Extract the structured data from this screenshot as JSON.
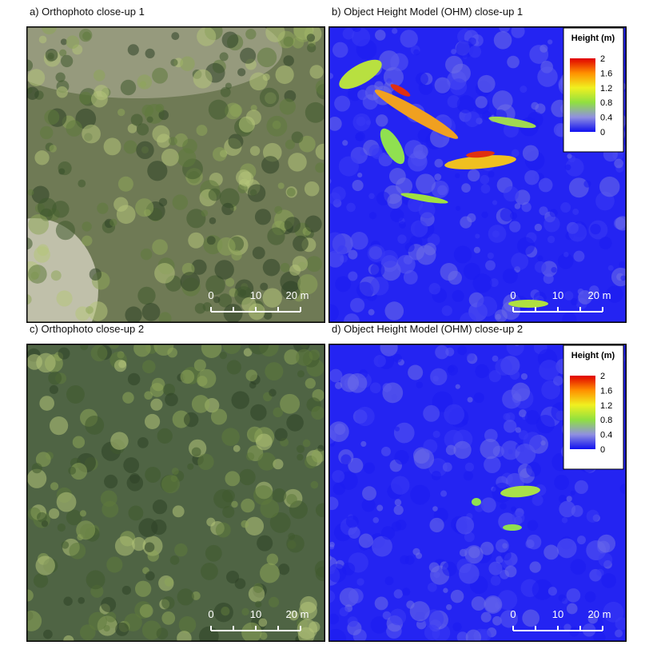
{
  "panels": [
    {
      "title": "a) Orthophoto close-up 1",
      "scale_bar": [
        "0",
        "10",
        "20 m"
      ]
    },
    {
      "title": "b) Object Height Model (OHM) close-up 1",
      "scale_bar": [
        "0",
        "10",
        "20 m"
      ],
      "legend": {
        "title": "Height (m)",
        "ticks": [
          "2",
          "1.6",
          "1.2",
          "0.8",
          "0.4",
          "0"
        ]
      }
    },
    {
      "title": "c) Orthophoto close-up 2",
      "scale_bar": [
        "0",
        "10",
        "20 m"
      ]
    },
    {
      "title": "d) Object Height Model (OHM) close-up 2",
      "scale_bar": [
        "0",
        "10",
        "20 m"
      ],
      "legend": {
        "title": "Height (m)",
        "ticks": [
          "2",
          "1.6",
          "1.2",
          "0.8",
          "0.4",
          "0"
        ]
      }
    }
  ]
}
